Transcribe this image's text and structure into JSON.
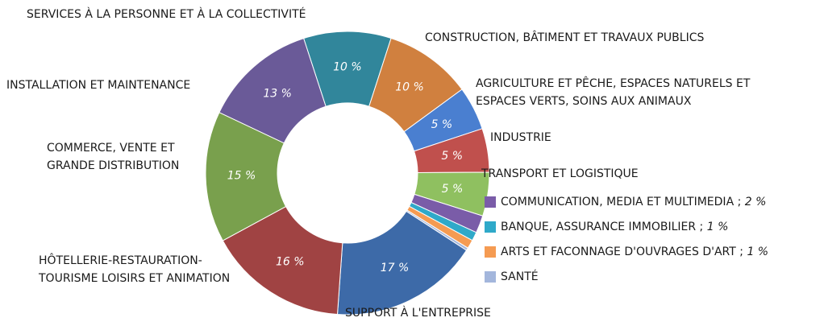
{
  "chart_data": {
    "type": "donut",
    "categories": [
      "SERVICES À LA PERSONNE ET À LA COLLECTIVITÉ",
      "CONSTRUCTION, BÂTIMENT ET TRAVAUX PUBLICS",
      "AGRICULTURE ET PÊCHE, ESPACES NATURELS ET\nESPACES VERTS, SOINS AUX ANIMAUX",
      "INDUSTRIE",
      "TRANSPORT ET LOGISTIQUE",
      "COMMUNICATION, MEDIA ET MULTIMEDIA",
      "BANQUE, ASSURANCE IMMOBILIER",
      "ARTS ET FACONNAGE D'OUVRAGES D'ART",
      "SANTÉ",
      "SUPPORT À L'ENTREPRISE",
      "HÔTELLERIE-RESTAURATION-\nTOURISME LOISIRS ET ANIMATION",
      "COMMERCE, VENTE ET\nGRANDE DISTRIBUTION",
      "INSTALLATION ET MAINTENANCE"
    ],
    "values": [
      10,
      10,
      5,
      5,
      5,
      2,
      1,
      1,
      0.3,
      17,
      16,
      15,
      13
    ],
    "value_labels": [
      "10 %",
      "10 %",
      "5 %",
      "5 %",
      "5 %",
      "2 %",
      "1 %",
      "1 %",
      null,
      "17 %",
      "16 %",
      "15 %",
      "13 %"
    ],
    "colors": [
      "#31869b",
      "#d0803f",
      "#4a7fd0",
      "#c0504d",
      "#8fc060",
      "#7a5ca8",
      "#2fa9c9",
      "#f59b52",
      "#a3b6dc",
      "#3d6aa8",
      "#a04343",
      "#79a04d",
      "#6a5a98"
    ],
    "separator": ";"
  }
}
